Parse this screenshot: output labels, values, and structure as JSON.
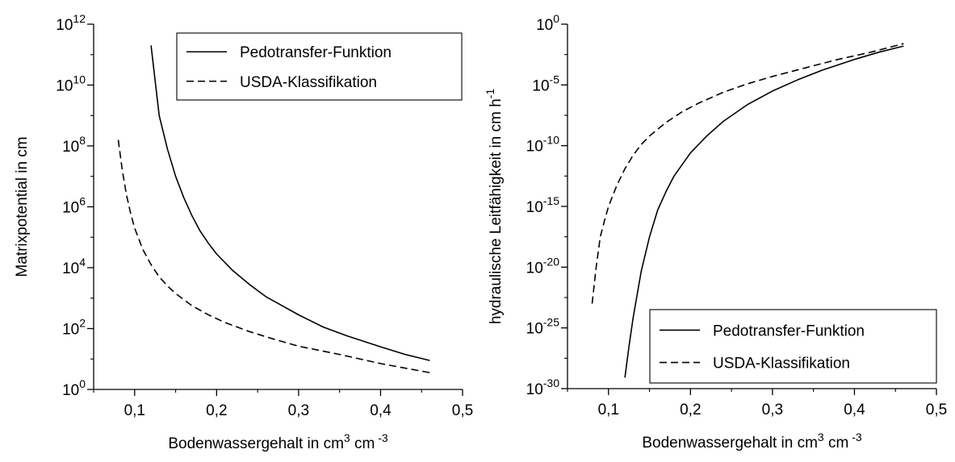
{
  "chart_data": [
    {
      "type": "line",
      "xlabel": "Bodenwassergehalt in cm",
      "xlabel_sup1": "3",
      "xlabel_mid": " cm",
      "xlabel_sup2": " -3",
      "ylabel": "Matrixpotential in cm",
      "y_scale": "log10",
      "xlim": [
        0.05,
        0.5
      ],
      "ylim_exp": [
        0,
        12
      ],
      "x_ticks": [
        {
          "v": 0.1,
          "label": "0,1"
        },
        {
          "v": 0.2,
          "label": "0,2"
        },
        {
          "v": 0.3,
          "label": "0,3"
        },
        {
          "v": 0.4,
          "label": "0,4"
        },
        {
          "v": 0.5,
          "label": "0,5"
        }
      ],
      "y_ticks": [
        {
          "exp": 0,
          "base": "10",
          "sup": "0"
        },
        {
          "exp": 2,
          "base": "10",
          "sup": "2"
        },
        {
          "exp": 4,
          "base": "10",
          "sup": "4"
        },
        {
          "exp": 6,
          "base": "10",
          "sup": "6"
        },
        {
          "exp": 8,
          "base": "10",
          "sup": "8"
        },
        {
          "exp": 10,
          "base": "10",
          "sup": "10"
        },
        {
          "exp": 12,
          "base": "10",
          "sup": "12"
        }
      ],
      "legend_position": "top-right",
      "series": [
        {
          "name": "Pedotransfer-Funktion",
          "style": "solid",
          "x": [
            0.12,
            0.13,
            0.14,
            0.15,
            0.16,
            0.17,
            0.18,
            0.19,
            0.2,
            0.22,
            0.24,
            0.26,
            0.28,
            0.3,
            0.33,
            0.36,
            0.4,
            0.43,
            0.46
          ],
          "log10_y": [
            11.3,
            9.0,
            7.9,
            7.0,
            6.3,
            5.7,
            5.2,
            4.8,
            4.45,
            3.9,
            3.45,
            3.05,
            2.75,
            2.45,
            2.05,
            1.75,
            1.4,
            1.15,
            0.95
          ]
        },
        {
          "name": "USDA-Klassifikation",
          "style": "dashed",
          "x": [
            0.08,
            0.085,
            0.09,
            0.095,
            0.1,
            0.11,
            0.12,
            0.13,
            0.14,
            0.15,
            0.17,
            0.19,
            0.21,
            0.24,
            0.27,
            0.3,
            0.35,
            0.4,
            0.46
          ],
          "log10_y": [
            8.2,
            7.2,
            6.4,
            5.8,
            5.3,
            4.6,
            4.1,
            3.7,
            3.4,
            3.15,
            2.75,
            2.45,
            2.2,
            1.9,
            1.65,
            1.42,
            1.15,
            0.85,
            0.55
          ]
        }
      ]
    },
    {
      "type": "line",
      "xlabel": "Bodenwassergehalt in cm",
      "xlabel_sup1": "3",
      "xlabel_mid": " cm",
      "xlabel_sup2": " -3",
      "ylabel": "hydraulische Leitfähigkeit in cm h",
      "ylabel_sup": "-1",
      "y_scale": "log10",
      "xlim": [
        0.05,
        0.5
      ],
      "ylim_exp": [
        -30,
        0
      ],
      "x_ticks": [
        {
          "v": 0.1,
          "label": "0,1"
        },
        {
          "v": 0.2,
          "label": "0,2"
        },
        {
          "v": 0.3,
          "label": "0,3"
        },
        {
          "v": 0.4,
          "label": "0,4"
        },
        {
          "v": 0.5,
          "label": "0,5"
        }
      ],
      "y_ticks": [
        {
          "exp": -30,
          "base": "10",
          "sup": "-30"
        },
        {
          "exp": -25,
          "base": "10",
          "sup": "-25"
        },
        {
          "exp": -20,
          "base": "10",
          "sup": "-20"
        },
        {
          "exp": -15,
          "base": "10",
          "sup": "-15"
        },
        {
          "exp": -10,
          "base": "10",
          "sup": "-10"
        },
        {
          "exp": -5,
          "base": "10",
          "sup": "-5"
        },
        {
          "exp": 0,
          "base": "10",
          "sup": "0"
        }
      ],
      "legend_position": "bottom-right",
      "series": [
        {
          "name": "Pedotransfer-Funktion",
          "style": "solid",
          "x": [
            0.12,
            0.125,
            0.13,
            0.14,
            0.15,
            0.16,
            0.17,
            0.18,
            0.2,
            0.22,
            0.24,
            0.27,
            0.3,
            0.33,
            0.36,
            0.4,
            0.43,
            0.46
          ],
          "log10_y": [
            -29.1,
            -26.5,
            -24.2,
            -20.3,
            -17.5,
            -15.3,
            -13.8,
            -12.5,
            -10.6,
            -9.2,
            -8.0,
            -6.6,
            -5.5,
            -4.6,
            -3.8,
            -2.9,
            -2.3,
            -1.8
          ]
        },
        {
          "name": "USDA-Klassifikation",
          "style": "dashed",
          "x": [
            0.08,
            0.085,
            0.09,
            0.095,
            0.1,
            0.11,
            0.12,
            0.13,
            0.14,
            0.15,
            0.17,
            0.19,
            0.21,
            0.24,
            0.27,
            0.3,
            0.34,
            0.38,
            0.42,
            0.46
          ],
          "log10_y": [
            -23.0,
            -20.0,
            -17.5,
            -16.2,
            -15.0,
            -13.3,
            -11.9,
            -10.8,
            -9.9,
            -9.2,
            -8.1,
            -7.2,
            -6.5,
            -5.6,
            -4.9,
            -4.3,
            -3.6,
            -2.9,
            -2.3,
            -1.6
          ]
        }
      ]
    }
  ]
}
